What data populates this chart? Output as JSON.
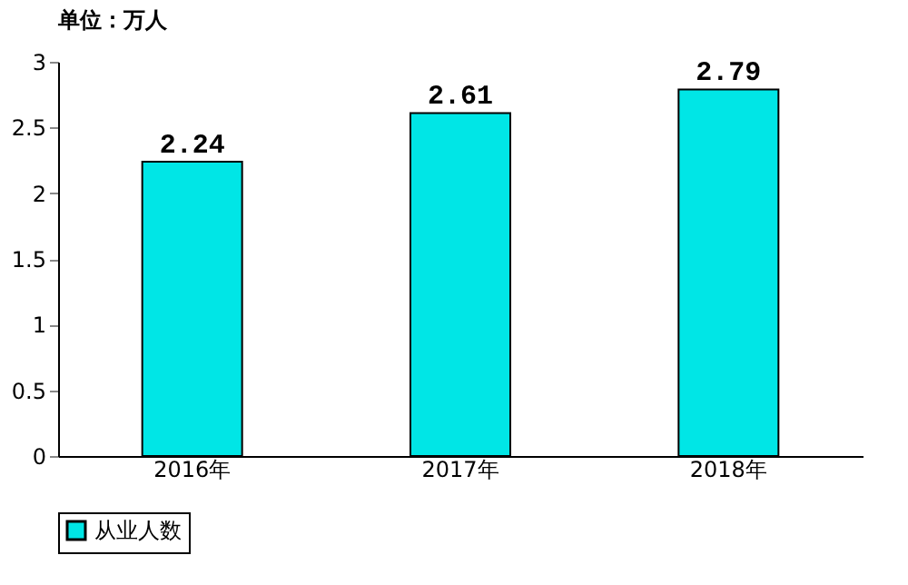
{
  "chart_data": {
    "type": "bar",
    "categories": [
      "2016年",
      "2017年",
      "2018年"
    ],
    "series": [
      {
        "name": "从业人数",
        "color": "#00e6e6",
        "values": [
          2.24,
          2.61,
          2.79
        ]
      }
    ],
    "ylim": [
      0,
      3
    ],
    "yticks": [
      0,
      0.5,
      1,
      1.5,
      2,
      2.5,
      3
    ],
    "legend": "bottom",
    "data_labels": true,
    "annotations": [
      "单位：万人"
    ]
  }
}
